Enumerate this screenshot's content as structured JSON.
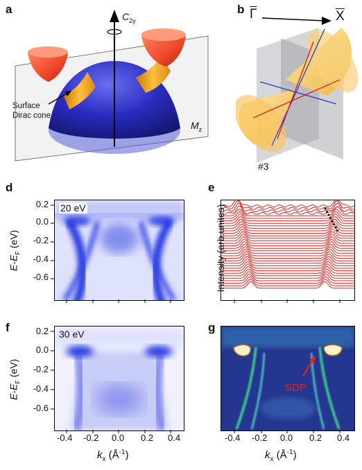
{
  "panels": {
    "a": {
      "letter": "a",
      "axis_label": "C",
      "axis_sub": "2y",
      "plane_label": "M",
      "plane_sub": "z",
      "annotation_line1": "Surface",
      "annotation_line2": "Dirac cone"
    },
    "b": {
      "letter": "b",
      "gamma_label": "Γ",
      "x_label": "X",
      "number_label": "#3"
    },
    "d": {
      "letter": "d",
      "photon_energy": "20 eV",
      "ylabel_main": "E",
      "ylabel_minus": "-",
      "ylabel_e": "E",
      "ylabel_sub": "F",
      "ylabel_unit": " (eV)",
      "yticks": [
        "0.2",
        "0.0",
        "-0.2",
        "-0.4",
        "-0.6"
      ]
    },
    "e": {
      "letter": "e",
      "ylabel": "Intensity (arb.unites)"
    },
    "f": {
      "letter": "f",
      "photon_energy": "30 eV",
      "ylabel_main": "E",
      "ylabel_minus": "-",
      "ylabel_e": "E",
      "ylabel_sub": "F",
      "ylabel_unit": " (eV)",
      "yticks": [
        "0.2",
        "0.0",
        "-0.2",
        "-0.4",
        "-0.6"
      ],
      "xticks": [
        "-0.4",
        "-0.2",
        "0.0",
        "0.2",
        "0.4"
      ],
      "xlabel_k": "k",
      "xlabel_sub": "x",
      "xlabel_unit": " (Å",
      "xlabel_exp": "-1",
      "xlabel_close": ")"
    },
    "g": {
      "letter": "g",
      "annotation": "SDP",
      "xticks": [
        "-0.4",
        "-0.2",
        "0.0",
        "0.2",
        "0.4"
      ],
      "xlabel_k": "k",
      "xlabel_sub": "x",
      "xlabel_unit": " (Å",
      "xlabel_exp": "-1",
      "xlabel_close": ")"
    }
  },
  "colors": {
    "arpes_blue": "#1a2fe0",
    "edc_red": "#e8201a",
    "dirac_orange": "#f2a21a",
    "bulk_navy": "#1c1fa0",
    "cone_red": "#f04a2a",
    "curvature_bg": "#1f2f8f",
    "curvature_green": "#3fe08a"
  }
}
